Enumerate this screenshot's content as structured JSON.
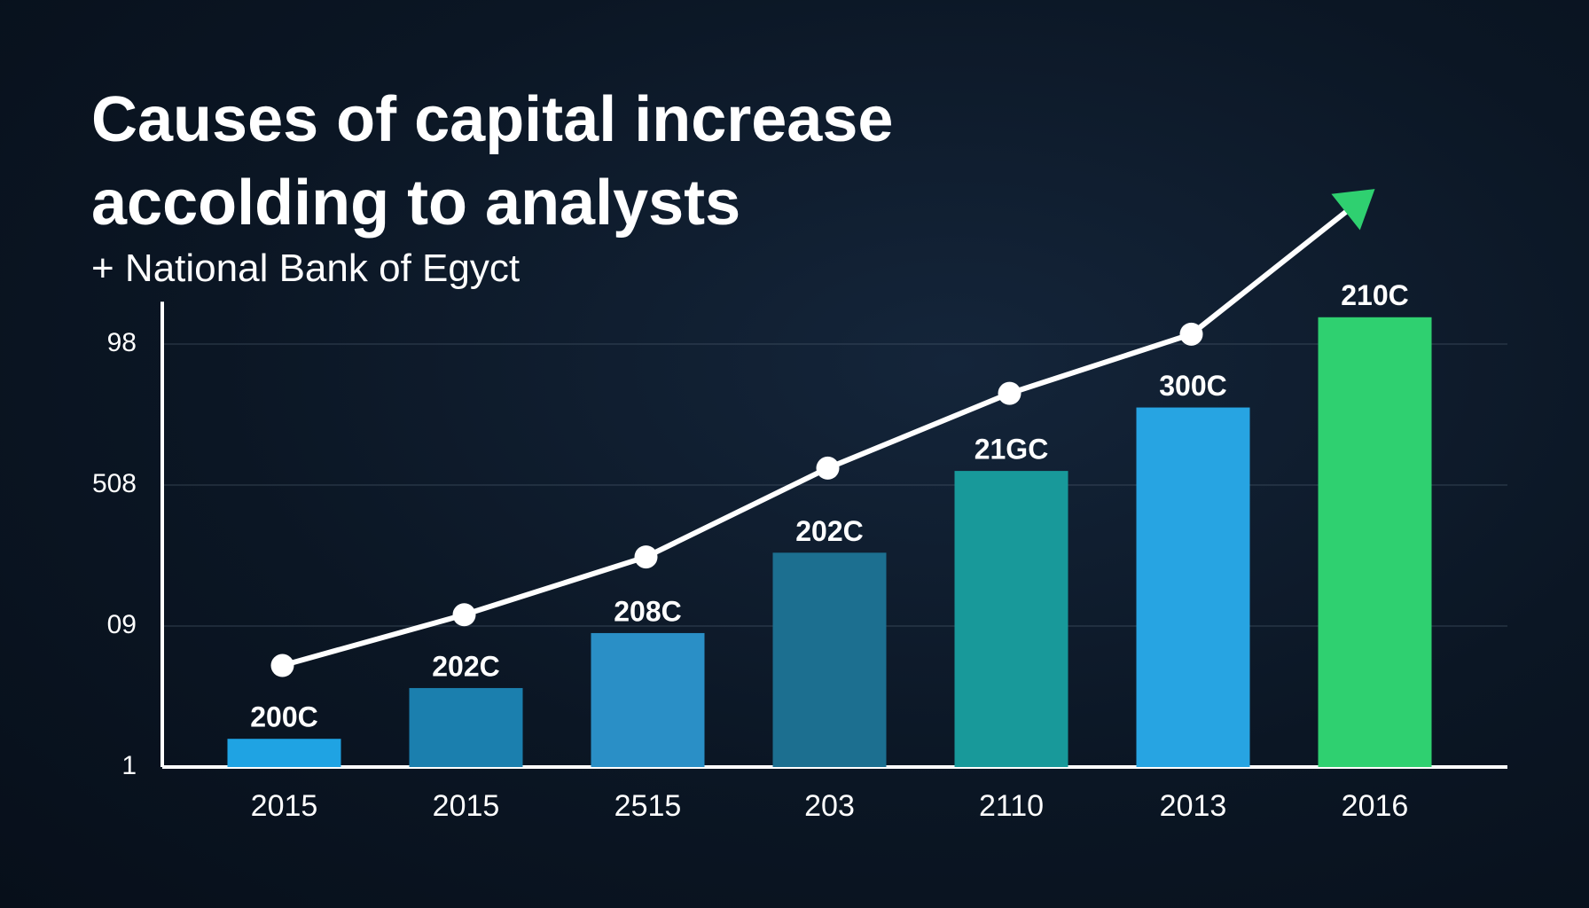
{
  "chart_data": {
    "type": "bar_line",
    "title": "Causes of capital increase accolding to analysts",
    "subtitle": "+ National Bank of Egyct",
    "categories": [
      "2015",
      "2015",
      "2515",
      "203",
      "2110",
      "2013",
      "2016"
    ],
    "series": [
      {
        "type": "bar",
        "values": [
          0.2,
          0.56,
          0.95,
          1.52,
          2.1,
          2.55,
          3.19
        ],
        "colors": [
          "#1fa3e3",
          "#1b7fae",
          "#2a8fc6",
          "#1c6f90",
          "#18999a",
          "#27a4e2",
          "#2fd070"
        ],
        "bar_texts": [
          "200C",
          "202C",
          "208C",
          "202C",
          "21GC",
          "300C",
          "210C"
        ]
      },
      {
        "type": "line",
        "color": "#ffffff",
        "values": [
          0.72,
          1.08,
          1.49,
          2.12,
          2.65,
          3.07,
          4.1
        ],
        "arrow_color": "#2fd070"
      }
    ],
    "ylim": [
      0,
      3.3
    ],
    "yticks": [
      {
        "value": 0,
        "label": "1"
      },
      {
        "value": 1,
        "label": "09"
      },
      {
        "value": 2,
        "label": "508"
      },
      {
        "value": 3,
        "label": "98"
      }
    ],
    "grid": true
  }
}
